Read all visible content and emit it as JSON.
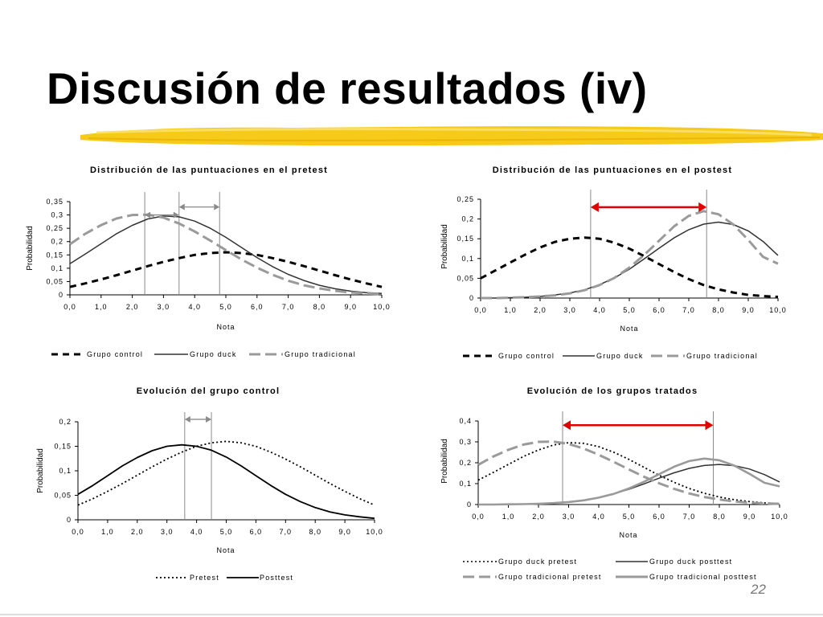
{
  "slide": {
    "title": "Discusión de resultados (iv)",
    "page_number": "22"
  },
  "colors": {
    "brush": "#f5c400",
    "black": "#000000",
    "dark": "#333333",
    "gray": "#9a9a9a",
    "red": "#e00000"
  },
  "chart_data": [
    {
      "type": "line",
      "title": "Distribución de las puntuaciones en el pretest",
      "xlabel": "Nota",
      "ylabel": "Probabilidad",
      "xlim": [
        0,
        10
      ],
      "ylim": [
        0,
        0.35
      ],
      "x_ticks": [
        "0,0",
        "1,0",
        "2,0",
        "3,0",
        "4,0",
        "5,0",
        "6,0",
        "7,0",
        "8,0",
        "9,0",
        "10,0"
      ],
      "y_ticks": [
        "0",
        "0,05",
        "0,1",
        "0,15",
        "0,2",
        "0,25",
        "0,3",
        "0,35"
      ],
      "x": [
        0,
        0.5,
        1,
        1.5,
        2,
        2.5,
        3,
        3.5,
        4,
        4.5,
        5,
        5.5,
        6,
        6.5,
        7,
        7.5,
        8,
        8.5,
        9,
        9.5,
        10
      ],
      "series": [
        {
          "name": "Grupo control",
          "style": "bigdash",
          "values": [
            0.03,
            0.043,
            0.058,
            0.074,
            0.091,
            0.108,
            0.124,
            0.138,
            0.15,
            0.157,
            0.16,
            0.157,
            0.15,
            0.138,
            0.124,
            0.108,
            0.091,
            0.074,
            0.058,
            0.043,
            0.03
          ]
        },
        {
          "name": "Grupo duck",
          "style": "solid-dark",
          "values": [
            0.117,
            0.154,
            0.192,
            0.23,
            0.261,
            0.285,
            0.296,
            0.293,
            0.277,
            0.25,
            0.216,
            0.178,
            0.14,
            0.106,
            0.077,
            0.054,
            0.036,
            0.023,
            0.014,
            0.008,
            0.005
          ]
        },
        {
          "name": "Grupo tradicional",
          "style": "longdash-gray",
          "values": [
            0.19,
            0.23,
            0.262,
            0.287,
            0.3,
            0.301,
            0.29,
            0.268,
            0.238,
            0.204,
            0.168,
            0.133,
            0.102,
            0.075,
            0.053,
            0.036,
            0.024,
            0.015,
            0.009,
            0.005,
            0.003
          ]
        }
      ],
      "vlines": [
        2.4,
        3.5,
        4.8
      ],
      "arrows": [
        {
          "x1": 2.4,
          "x2": 3.5,
          "y": 0.3,
          "color": "gray"
        },
        {
          "x1": 3.5,
          "x2": 4.8,
          "y": 0.33,
          "color": "gray"
        }
      ],
      "legend": "bottom"
    },
    {
      "type": "line",
      "title": "Distribución de las puntuaciones en el postest",
      "xlabel": "Nota",
      "ylabel": "Probabilidad",
      "xlim": [
        0,
        10
      ],
      "ylim": [
        0,
        0.25
      ],
      "x_ticks": [
        "0,0",
        "1,0",
        "2,0",
        "3,0",
        "4,0",
        "5,0",
        "6,0",
        "7,0",
        "8,0",
        "9,0",
        "10,0"
      ],
      "y_ticks": [
        "0",
        "0,05",
        "0,1",
        "0,15",
        "0,2",
        "0,25"
      ],
      "x": [
        0,
        0.5,
        1,
        1.5,
        2,
        2.5,
        3,
        3.5,
        4,
        4.5,
        5,
        5.5,
        6,
        6.5,
        7,
        7.5,
        8,
        8.5,
        9,
        9.5,
        10
      ],
      "series": [
        {
          "name": "Grupo control",
          "style": "bigdash",
          "values": [
            0.05,
            0.07,
            0.09,
            0.11,
            0.128,
            0.142,
            0.15,
            0.153,
            0.15,
            0.14,
            0.125,
            0.106,
            0.086,
            0.066,
            0.048,
            0.033,
            0.022,
            0.014,
            0.008,
            0.005,
            0.003
          ]
        },
        {
          "name": "Grupo duck",
          "style": "solid-dark",
          "values": [
            0.0,
            0.0,
            0.001,
            0.002,
            0.004,
            0.008,
            0.013,
            0.021,
            0.034,
            0.051,
            0.073,
            0.099,
            0.126,
            0.152,
            0.173,
            0.187,
            0.192,
            0.186,
            0.17,
            0.143,
            0.108
          ]
        },
        {
          "name": "Grupo tradicional",
          "style": "longdash-gray",
          "values": [
            0.0,
            0.0,
            0.001,
            0.002,
            0.004,
            0.007,
            0.012,
            0.02,
            0.033,
            0.051,
            0.077,
            0.109,
            0.145,
            0.181,
            0.208,
            0.22,
            0.212,
            0.186,
            0.147,
            0.104,
            0.087
          ]
        }
      ],
      "vlines": [
        3.7,
        7.6
      ],
      "arrows": [
        {
          "x1": 3.7,
          "x2": 7.6,
          "y": 0.23,
          "color": "red"
        }
      ],
      "legend": "bottom"
    },
    {
      "type": "line",
      "title": "Evolución del grupo control",
      "xlabel": "Nota",
      "ylabel": "Probabilidad",
      "xlim": [
        0,
        10
      ],
      "ylim": [
        0,
        0.2
      ],
      "x_ticks": [
        "0,0",
        "1,0",
        "2,0",
        "3,0",
        "4,0",
        "5,0",
        "6,0",
        "7,0",
        "8,0",
        "9,0",
        "10,0"
      ],
      "y_ticks": [
        "0",
        "0,05",
        "0,1",
        "0,15",
        "0,2"
      ],
      "x": [
        0,
        0.5,
        1,
        1.5,
        2,
        2.5,
        3,
        3.5,
        4,
        4.5,
        5,
        5.5,
        6,
        6.5,
        7,
        7.5,
        8,
        8.5,
        9,
        9.5,
        10
      ],
      "series": [
        {
          "name": "Pretest",
          "style": "dotted",
          "values": [
            0.03,
            0.043,
            0.058,
            0.074,
            0.091,
            0.108,
            0.124,
            0.138,
            0.15,
            0.157,
            0.16,
            0.157,
            0.15,
            0.138,
            0.124,
            0.108,
            0.091,
            0.074,
            0.058,
            0.043,
            0.03
          ]
        },
        {
          "name": "Posttest",
          "style": "solid-black",
          "values": [
            0.052,
            0.07,
            0.09,
            0.11,
            0.127,
            0.141,
            0.15,
            0.153,
            0.15,
            0.142,
            0.128,
            0.11,
            0.09,
            0.07,
            0.052,
            0.037,
            0.025,
            0.016,
            0.01,
            0.006,
            0.003
          ]
        }
      ],
      "vlines": [
        3.6,
        4.5
      ],
      "arrows": [
        {
          "x1": 3.6,
          "x2": 4.5,
          "y": 0.205,
          "color": "gray"
        }
      ],
      "legend": "bottom"
    },
    {
      "type": "line",
      "title": "Evolución de los grupos tratados",
      "xlabel": "Nota",
      "ylabel": "Probabilidad",
      "xlim": [
        0,
        10
      ],
      "ylim": [
        0,
        0.4
      ],
      "x_ticks": [
        "0,0",
        "1,0",
        "2,0",
        "3,0",
        "4,0",
        "5,0",
        "6,0",
        "7,0",
        "8,0",
        "9,0",
        "10,0"
      ],
      "y_ticks": [
        "0",
        "0,1",
        "0,2",
        "0,3",
        "0,4"
      ],
      "x": [
        0,
        0.5,
        1,
        1.5,
        2,
        2.5,
        3,
        3.5,
        4,
        4.5,
        5,
        5.5,
        6,
        6.5,
        7,
        7.5,
        8,
        8.5,
        9,
        9.5,
        10
      ],
      "series": [
        {
          "name": "Grupo duck pretest",
          "style": "dotted",
          "values": [
            0.117,
            0.154,
            0.192,
            0.23,
            0.261,
            0.285,
            0.296,
            0.293,
            0.277,
            0.25,
            0.216,
            0.178,
            0.14,
            0.106,
            0.077,
            0.054,
            0.036,
            0.023,
            0.014,
            0.008,
            0.005
          ]
        },
        {
          "name": "Grupo duck posttest",
          "style": "solid-dark",
          "values": [
            0.0,
            0.0,
            0.001,
            0.002,
            0.004,
            0.008,
            0.013,
            0.021,
            0.034,
            0.051,
            0.073,
            0.099,
            0.126,
            0.152,
            0.173,
            0.187,
            0.192,
            0.186,
            0.17,
            0.143,
            0.108
          ]
        },
        {
          "name": "Grupo tradicional pretest",
          "style": "longdash-gray",
          "values": [
            0.19,
            0.23,
            0.262,
            0.287,
            0.3,
            0.301,
            0.29,
            0.268,
            0.238,
            0.204,
            0.168,
            0.133,
            0.102,
            0.075,
            0.053,
            0.036,
            0.024,
            0.015,
            0.009,
            0.005,
            0.003
          ]
        },
        {
          "name": "Grupo tradicional posttest",
          "style": "solid-gray",
          "values": [
            0.0,
            0.0,
            0.001,
            0.002,
            0.004,
            0.007,
            0.012,
            0.02,
            0.033,
            0.051,
            0.077,
            0.109,
            0.145,
            0.181,
            0.208,
            0.22,
            0.212,
            0.186,
            0.147,
            0.104,
            0.087
          ]
        }
      ],
      "vlines": [
        2.8,
        7.8
      ],
      "arrows": [
        {
          "x1": 2.8,
          "x2": 7.8,
          "y": 0.38,
          "color": "red"
        }
      ],
      "legend": "bottom"
    }
  ]
}
